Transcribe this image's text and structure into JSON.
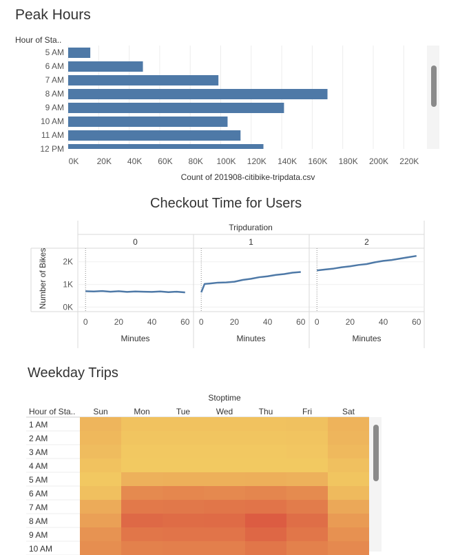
{
  "peak": {
    "title": "Peak Hours",
    "row_header": "Hour of Sta..",
    "chart_data": {
      "type": "bar",
      "categories": [
        "5 AM",
        "6 AM",
        "7 AM",
        "8 AM",
        "9 AM",
        "10 AM",
        "11 AM",
        "12 PM"
      ],
      "values": [
        14500,
        49000,
        98500,
        170000,
        141500,
        104500,
        113000,
        128000
      ],
      "xlabel": "Count of 201908-citibike-tripdata.csv",
      "xticks": [
        "0K",
        "20K",
        "40K",
        "60K",
        "80K",
        "100K",
        "120K",
        "140K",
        "160K",
        "180K",
        "200K",
        "220K"
      ],
      "xlim": [
        0,
        240000
      ],
      "bar_color": "#4e79a7",
      "grid": true
    }
  },
  "checkout": {
    "title": "Checkout Time for Users",
    "chart_data": {
      "type": "line",
      "column_header": "Tripduration",
      "panels": [
        "0",
        "1",
        "2"
      ],
      "ylabel": "Number of Bikes",
      "yticks": [
        "0K",
        "1K",
        "2K"
      ],
      "ylim": [
        -200,
        2600
      ],
      "xticks": [
        "0",
        "20",
        "40",
        "60"
      ],
      "xlabel": "Minutes",
      "xlim": [
        -3,
        63
      ],
      "line_color": "#4e79a7",
      "series": [
        {
          "x": [
            0,
            5,
            10,
            15,
            20,
            25,
            30,
            35,
            40,
            45,
            50,
            55,
            60
          ],
          "y": [
            700,
            690,
            710,
            680,
            700,
            670,
            690,
            680,
            670,
            690,
            660,
            680,
            650
          ]
        },
        {
          "x": [
            0,
            2,
            5,
            10,
            15,
            20,
            25,
            30,
            35,
            40,
            45,
            50,
            55,
            60
          ],
          "y": [
            650,
            1020,
            1040,
            1080,
            1090,
            1120,
            1200,
            1250,
            1320,
            1360,
            1420,
            1460,
            1520,
            1550
          ]
        },
        {
          "x": [
            0,
            5,
            10,
            15,
            20,
            25,
            30,
            35,
            40,
            45,
            50,
            55,
            60
          ],
          "y": [
            1620,
            1660,
            1700,
            1760,
            1800,
            1860,
            1900,
            1980,
            2040,
            2080,
            2140,
            2200,
            2260
          ]
        }
      ]
    }
  },
  "weekday": {
    "title": "Weekday Trips",
    "column_header": "Stoptime",
    "row_header": "Hour of Sta..",
    "chart_data": {
      "type": "heatmap",
      "columns": [
        "Sun",
        "Mon",
        "Tue",
        "Wed",
        "Thu",
        "Fri",
        "Sat"
      ],
      "rows": [
        "1 AM",
        "2 AM",
        "3 AM",
        "4 AM",
        "5 AM",
        "6 AM",
        "7 AM",
        "8 AM",
        "9 AM",
        "10 AM"
      ],
      "values": [
        [
          0.22,
          0.12,
          0.12,
          0.12,
          0.12,
          0.13,
          0.24
        ],
        [
          0.2,
          0.1,
          0.1,
          0.1,
          0.1,
          0.11,
          0.22
        ],
        [
          0.17,
          0.08,
          0.08,
          0.08,
          0.08,
          0.09,
          0.19
        ],
        [
          0.12,
          0.07,
          0.07,
          0.07,
          0.07,
          0.07,
          0.14
        ],
        [
          0.08,
          0.25,
          0.26,
          0.26,
          0.27,
          0.25,
          0.1
        ],
        [
          0.14,
          0.55,
          0.57,
          0.56,
          0.58,
          0.54,
          0.18
        ],
        [
          0.3,
          0.68,
          0.69,
          0.7,
          0.72,
          0.66,
          0.32
        ],
        [
          0.38,
          0.8,
          0.78,
          0.79,
          0.9,
          0.76,
          0.42
        ],
        [
          0.48,
          0.7,
          0.72,
          0.72,
          0.82,
          0.7,
          0.5
        ],
        [
          0.52,
          0.62,
          0.63,
          0.63,
          0.7,
          0.62,
          0.56
        ]
      ],
      "color_low": "#f4d264",
      "color_high": "#d94f3e"
    }
  }
}
